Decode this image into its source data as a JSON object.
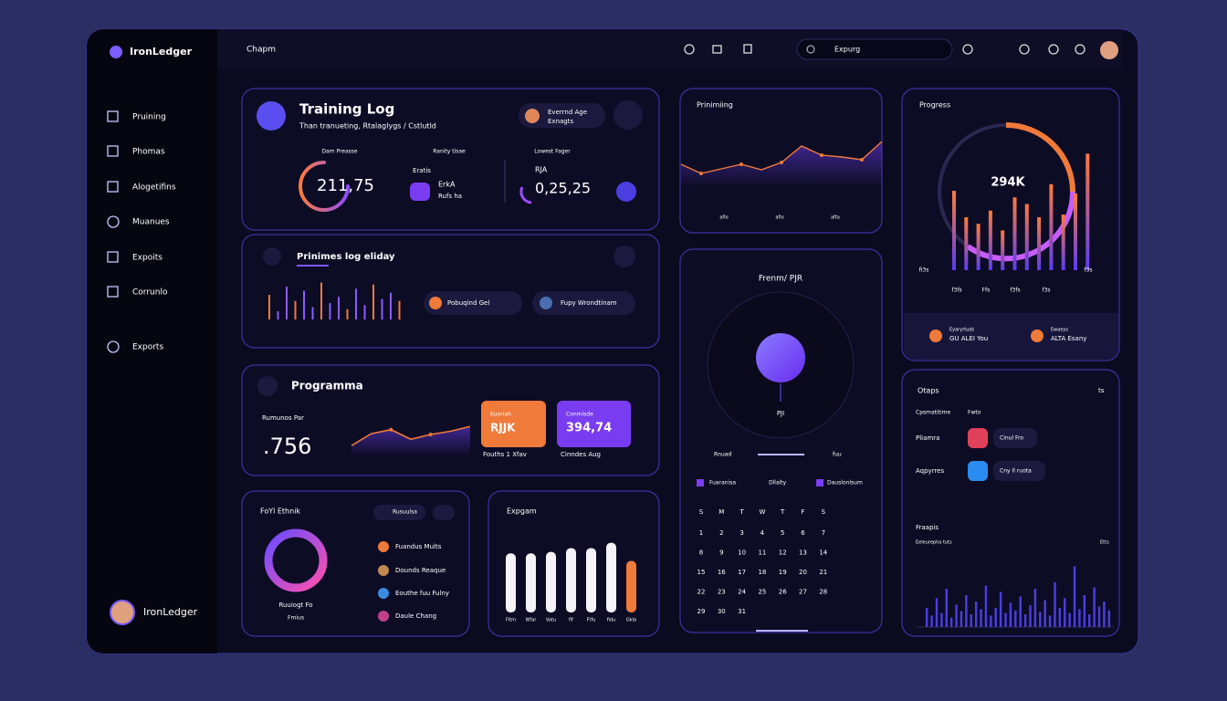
{
  "brand": "IronLedger",
  "topbar": {
    "breadcrumb": "Chapm",
    "search": "Expurg"
  },
  "sidebar": {
    "items": [
      "Pruining",
      "Phomas",
      "Alogetifins",
      "Muanues",
      "Expoits",
      "Corrunlo",
      "Exports"
    ],
    "user": "IronLedger"
  },
  "training_log": {
    "title": "Training Log",
    "subtitle": "Than tranueting, Rtalaglygs / Cstlutld",
    "badge": {
      "name": "Everrnd Age",
      "sub": "Exnagts"
    },
    "stats": [
      {
        "label": "Dam Preasse",
        "value": "211,75"
      },
      {
        "label": "Ranity tisae",
        "top": "Eratis",
        "value": "ErkA",
        "sub": "Rufs ha"
      },
      {
        "label": "Lowest Fager",
        "top": "RJA",
        "value": "0,25,25"
      }
    ]
  },
  "prinmes": {
    "title": "Prinimes log eliday",
    "values": [
      60,
      20,
      80,
      45,
      70,
      30,
      90,
      40,
      55,
      25,
      75,
      35,
      85,
      50,
      65,
      45
    ],
    "ylim": [
      0,
      100
    ],
    "pills": [
      "Pobuqind Gel",
      "Fupy Wrondtinam"
    ]
  },
  "programma": {
    "title": "Programma",
    "label": "Rumunos Par",
    "value": ".756",
    "values": [
      10,
      25,
      30,
      18,
      24,
      28,
      34
    ],
    "ylim": [
      0,
      40
    ],
    "tiles": [
      {
        "top": "Euoriah",
        "value": "RJJK",
        "caption": "Fouths 1 Xfav"
      },
      {
        "top": "Conmisde",
        "value": "394,74",
        "caption": "Cinndes Aug"
      }
    ]
  },
  "ring_card": {
    "title": "FoYl Ethnik",
    "caption": "Ruuiogt Fo",
    "sub": "Fmius",
    "pill": "Rusuulsa",
    "items": [
      "Fuandus Mults",
      "Dounds Reaque",
      "Eouthe fuu Fulny",
      "Daule Chang"
    ]
  },
  "expgam": {
    "title": "Expgam",
    "categories": [
      "Fltm",
      "Wfar",
      "Vatu",
      "fif",
      "Ftfu",
      "fidu",
      "Gkla"
    ],
    "values": [
      78,
      78,
      80,
      85,
      85,
      92,
      68
    ],
    "ylim": [
      0,
      100
    ]
  },
  "prinimiing": {
    "title": "Prinimiing",
    "values": [
      20,
      10,
      15,
      20,
      14,
      22,
      40,
      30,
      28,
      25,
      45
    ],
    "ylim": [
      0,
      50
    ],
    "labels": [
      "aflo",
      "aflo",
      "afta"
    ]
  },
  "phone": {
    "title": "Frenm/ PJR",
    "center": "PJI",
    "row": [
      "Rnuad",
      "fuu"
    ],
    "legend": [
      "Fuaranisa",
      "Dllalty",
      "Dauslonlsum"
    ],
    "weekdays": [
      "S",
      "M",
      "T",
      "W",
      "T",
      "F",
      "S"
    ],
    "days": [
      1,
      2,
      3,
      4,
      5,
      6,
      7,
      8,
      9,
      10,
      11,
      12,
      13,
      14,
      15,
      16,
      17,
      18,
      19,
      20,
      21,
      22,
      23,
      24,
      25,
      26,
      27,
      28,
      29,
      30,
      31
    ]
  },
  "progress": {
    "title": "Progress",
    "center": "294K",
    "values": [
      60,
      40,
      35,
      45,
      30,
      55,
      50,
      40,
      65,
      42,
      58,
      88
    ],
    "ylim": [
      0,
      100
    ],
    "side_labels": [
      "fi3s",
      "f3s"
    ],
    "labels": [
      "f3fs",
      "Ffs",
      "f3fs",
      "f3s"
    ],
    "people": [
      {
        "top": "Eyaryrtuds",
        "name": "GU ALEI You"
      },
      {
        "top": "Ewaeys",
        "name": "ALTA Esany"
      }
    ]
  },
  "otaps": {
    "title": "Otaps",
    "corner": "ts",
    "header": [
      "Cpsmatitime",
      "Fwto"
    ],
    "rows": [
      {
        "label": "Pliamra",
        "pill": "Cinul Fro"
      },
      {
        "label": "Aqpyrres",
        "pill": "Cny Il ruota"
      }
    ],
    "chart_title": "Fraapis",
    "chart_sub": "Eeleurepha tuts",
    "chart_corner": "Etts",
    "values": [
      30,
      18,
      45,
      22,
      60,
      15,
      35,
      25,
      50,
      20,
      40,
      28,
      65,
      18,
      30,
      55,
      22,
      38,
      26,
      48,
      20,
      34,
      60,
      24,
      42,
      18,
      70,
      30,
      45,
      22,
      95,
      28,
      50,
      20,
      62,
      32,
      40,
      26
    ],
    "ylim": [
      0,
      100
    ]
  }
}
